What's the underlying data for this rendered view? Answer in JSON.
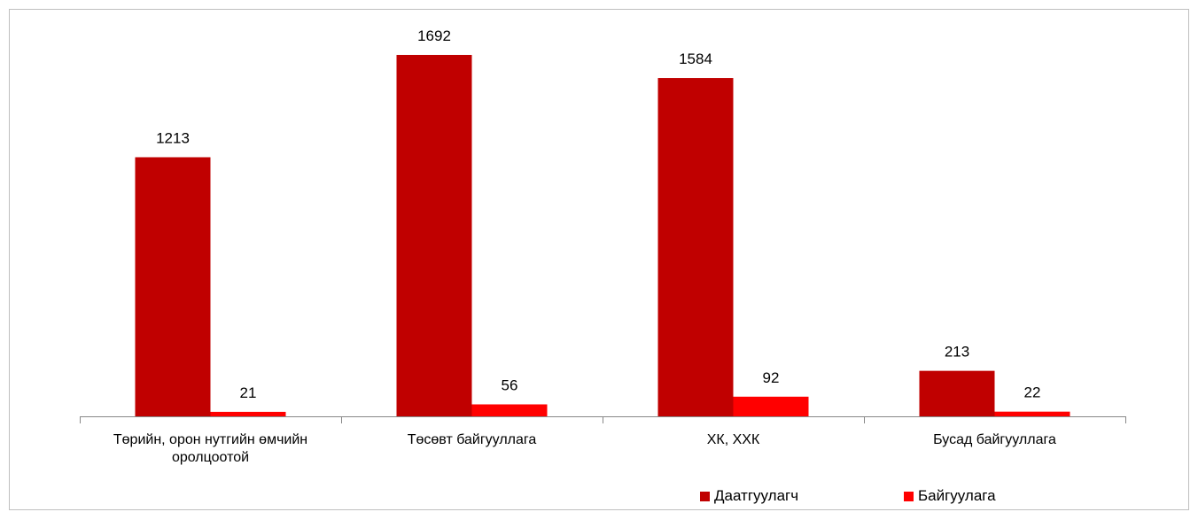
{
  "chart_data": {
    "type": "bar",
    "categories": [
      "Төрийн, орон нутгийн өмчийн оролцоотой",
      "Төсөвт байгууллага",
      "ХК, ХХК",
      "Бусад байгууллага"
    ],
    "series": [
      {
        "name": "Даатгуулагч",
        "color": "#C00000",
        "values": [
          1213,
          1692,
          1584,
          213
        ]
      },
      {
        "name": "Байгуулага",
        "color": "#FF0000",
        "values": [
          21,
          56,
          92,
          22
        ]
      }
    ],
    "legend": "bottom"
  }
}
